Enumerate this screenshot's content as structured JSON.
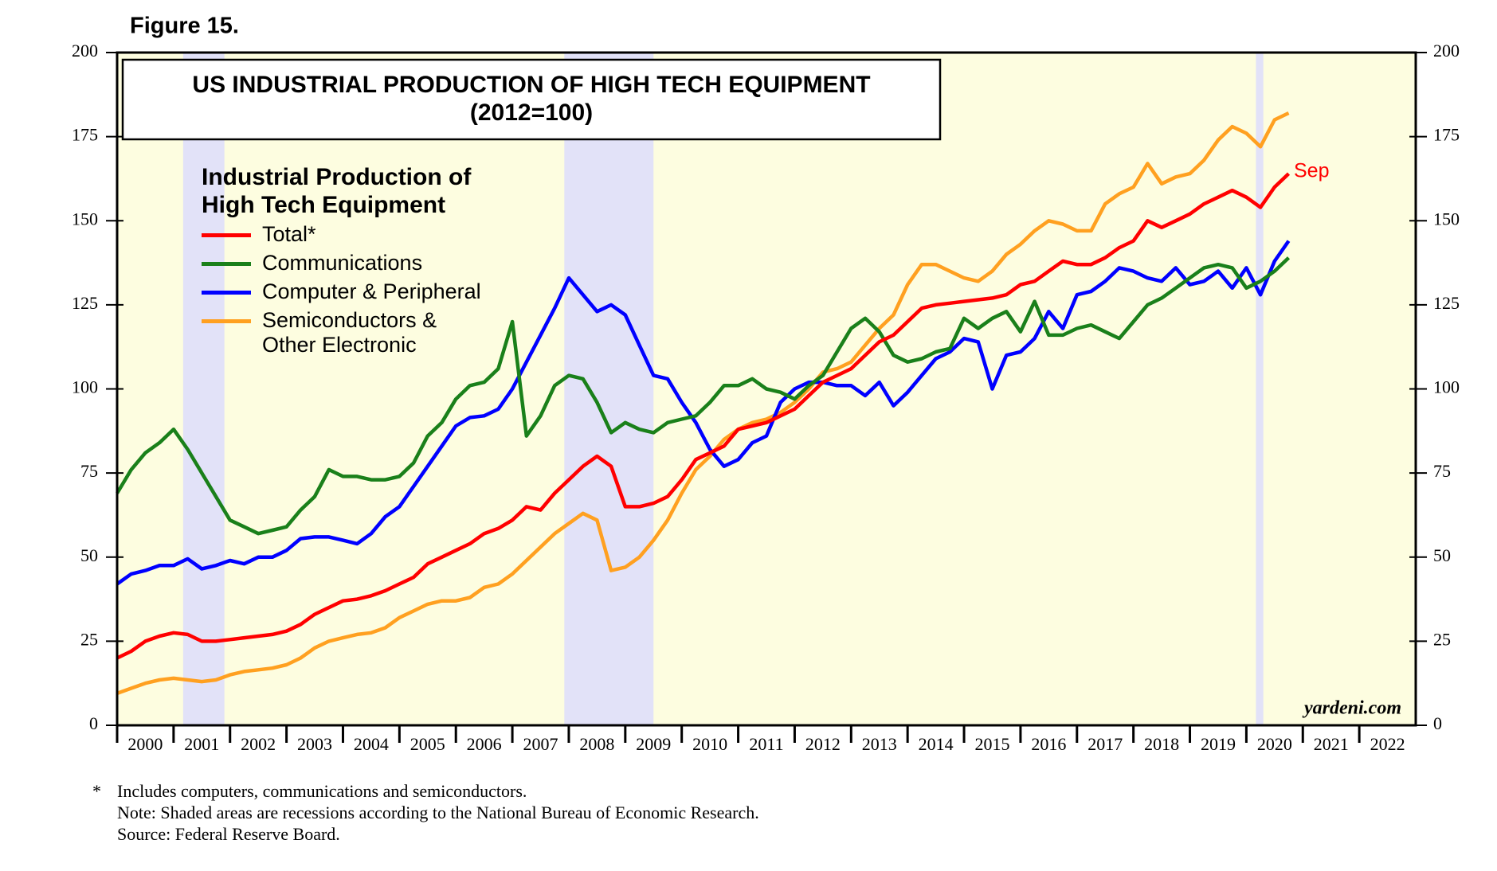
{
  "chart_data": {
    "type": "line",
    "figure_label": "Figure 15.",
    "title": "US INDUSTRIAL PRODUCTION OF HIGH TECH EQUIPMENT",
    "subtitle": "(2012=100)",
    "legend_title": "Industrial Production of\nHigh Tech Equipment",
    "annotation": "Sep",
    "source_mark": "yardeni.com",
    "footnotes": [
      "*",
      "Includes computers, communications and semiconductors.",
      "Note: Shaded areas are recessions according to the National Bureau of Economic Research.",
      "Source: Federal Reserve Board."
    ],
    "xlim": [
      2000,
      2023
    ],
    "xticks": [
      2000,
      2001,
      2002,
      2003,
      2004,
      2005,
      2006,
      2007,
      2008,
      2009,
      2010,
      2011,
      2012,
      2013,
      2014,
      2015,
      2016,
      2017,
      2018,
      2019,
      2020,
      2021,
      2022
    ],
    "ylim": [
      0,
      200
    ],
    "yticks": [
      0,
      25,
      50,
      75,
      100,
      125,
      150,
      175,
      200
    ],
    "y2lim": [
      0,
      200
    ],
    "y2ticks": [
      0,
      25,
      50,
      75,
      100,
      125,
      150,
      175,
      200
    ],
    "recessions": [
      [
        2001.17,
        2001.9
      ],
      [
        2007.92,
        2009.5
      ],
      [
        2020.17,
        2020.3
      ]
    ],
    "recession_color": "#e2e2f8",
    "background": "#fdfde0",
    "x": [
      2000,
      2000.25,
      2000.5,
      2000.75,
      2001,
      2001.25,
      2001.5,
      2001.75,
      2002,
      2002.25,
      2002.5,
      2002.75,
      2003,
      2003.25,
      2003.5,
      2003.75,
      2004,
      2004.25,
      2004.5,
      2004.75,
      2005,
      2005.25,
      2005.5,
      2005.75,
      2006,
      2006.25,
      2006.5,
      2006.75,
      2007,
      2007.25,
      2007.5,
      2007.75,
      2008,
      2008.25,
      2008.5,
      2008.75,
      2009,
      2009.25,
      2009.5,
      2009.75,
      2010,
      2010.25,
      2010.5,
      2010.75,
      2011,
      2011.25,
      2011.5,
      2011.75,
      2012,
      2012.25,
      2012.5,
      2012.75,
      2013,
      2013.25,
      2013.5,
      2013.75,
      2014,
      2014.25,
      2014.5,
      2014.75,
      2015,
      2015.25,
      2015.5,
      2015.75,
      2016,
      2016.25,
      2016.5,
      2016.75,
      2017,
      2017.25,
      2017.5,
      2017.75,
      2018,
      2018.25,
      2018.5,
      2018.75,
      2019,
      2019.25,
      2019.5,
      2019.75,
      2020,
      2020.25,
      2020.5,
      2020.75
    ],
    "series": [
      {
        "name": "Total*",
        "color": "#ff0000",
        "values": [
          20,
          22,
          25,
          26.5,
          27.5,
          27,
          25,
          25,
          25.5,
          26,
          26.5,
          27,
          28,
          30,
          33,
          35,
          37,
          37.5,
          38.5,
          40,
          42,
          44,
          48,
          50,
          52,
          54,
          57,
          58.5,
          61,
          65,
          64,
          69,
          73,
          77,
          80,
          77,
          65,
          65,
          66,
          68,
          73,
          79,
          81,
          83,
          88,
          89,
          90,
          92,
          94,
          98,
          102,
          104,
          106,
          110,
          114,
          116,
          120,
          124,
          125,
          125.5,
          126,
          126.5,
          127,
          128,
          131,
          132,
          135,
          138,
          137,
          137,
          139,
          142,
          144,
          150,
          148,
          150,
          152,
          155,
          157,
          159,
          157,
          154,
          160,
          164
        ]
      },
      {
        "name": "Communications",
        "color": "#1a801a",
        "values": [
          69,
          76,
          81,
          84,
          88,
          82,
          75,
          68,
          61,
          59,
          57,
          58,
          59,
          64,
          68,
          76,
          74,
          74,
          73,
          73,
          74,
          78,
          86,
          90,
          97,
          101,
          102,
          106,
          120,
          86,
          92,
          101,
          104,
          103,
          96,
          87,
          90,
          88,
          87,
          90,
          91,
          92,
          96,
          101,
          101,
          103,
          100,
          99,
          97,
          101,
          104,
          111,
          118,
          121,
          117,
          110,
          108,
          109,
          111,
          112,
          121,
          118,
          121,
          123,
          117,
          126,
          116,
          116,
          118,
          119,
          117,
          115,
          120,
          125,
          127,
          130,
          133,
          136,
          137,
          136,
          130,
          132,
          135,
          139
        ]
      },
      {
        "name": "Computer & Peripheral",
        "color": "#0000ff",
        "values": [
          42,
          45,
          46,
          47.5,
          47.5,
          49.5,
          46.5,
          47.5,
          49,
          48,
          50,
          50,
          52,
          55.5,
          56,
          56,
          55,
          54,
          57,
          62,
          65,
          71,
          77,
          83,
          89,
          91.5,
          92,
          94,
          100,
          108,
          116,
          124,
          133,
          128,
          123,
          125,
          122,
          113,
          104,
          103,
          96,
          90,
          82,
          77,
          79,
          84,
          86,
          96,
          100,
          102,
          102,
          101,
          101,
          98,
          102,
          95,
          99,
          104,
          109,
          111,
          115,
          114,
          100,
          110,
          111,
          115,
          123,
          118,
          128,
          129,
          132,
          136,
          135,
          133,
          132,
          136,
          131,
          132,
          135,
          130,
          136,
          128,
          138,
          144
        ]
      },
      {
        "name": "Semiconductors &\nOther Electronic",
        "color": "#ffa020",
        "values": [
          9.5,
          11,
          12.5,
          13.5,
          14,
          13.5,
          13,
          13.5,
          15,
          16,
          16.5,
          17,
          18,
          20,
          23,
          25,
          26,
          27,
          27.5,
          29,
          32,
          34,
          36,
          37,
          37,
          38,
          41,
          42,
          45,
          49,
          53,
          57,
          60,
          63,
          61,
          46,
          47,
          50,
          55,
          61,
          69,
          76,
          80,
          85,
          88,
          90,
          91,
          93,
          96,
          100,
          105,
          106,
          108,
          113,
          118,
          122,
          131,
          137,
          137,
          135,
          133,
          132,
          135,
          140,
          143,
          147,
          150,
          149,
          147,
          147,
          155,
          158,
          160,
          167,
          161,
          163,
          164,
          168,
          174,
          178,
          176,
          172,
          180,
          182
        ]
      }
    ]
  }
}
